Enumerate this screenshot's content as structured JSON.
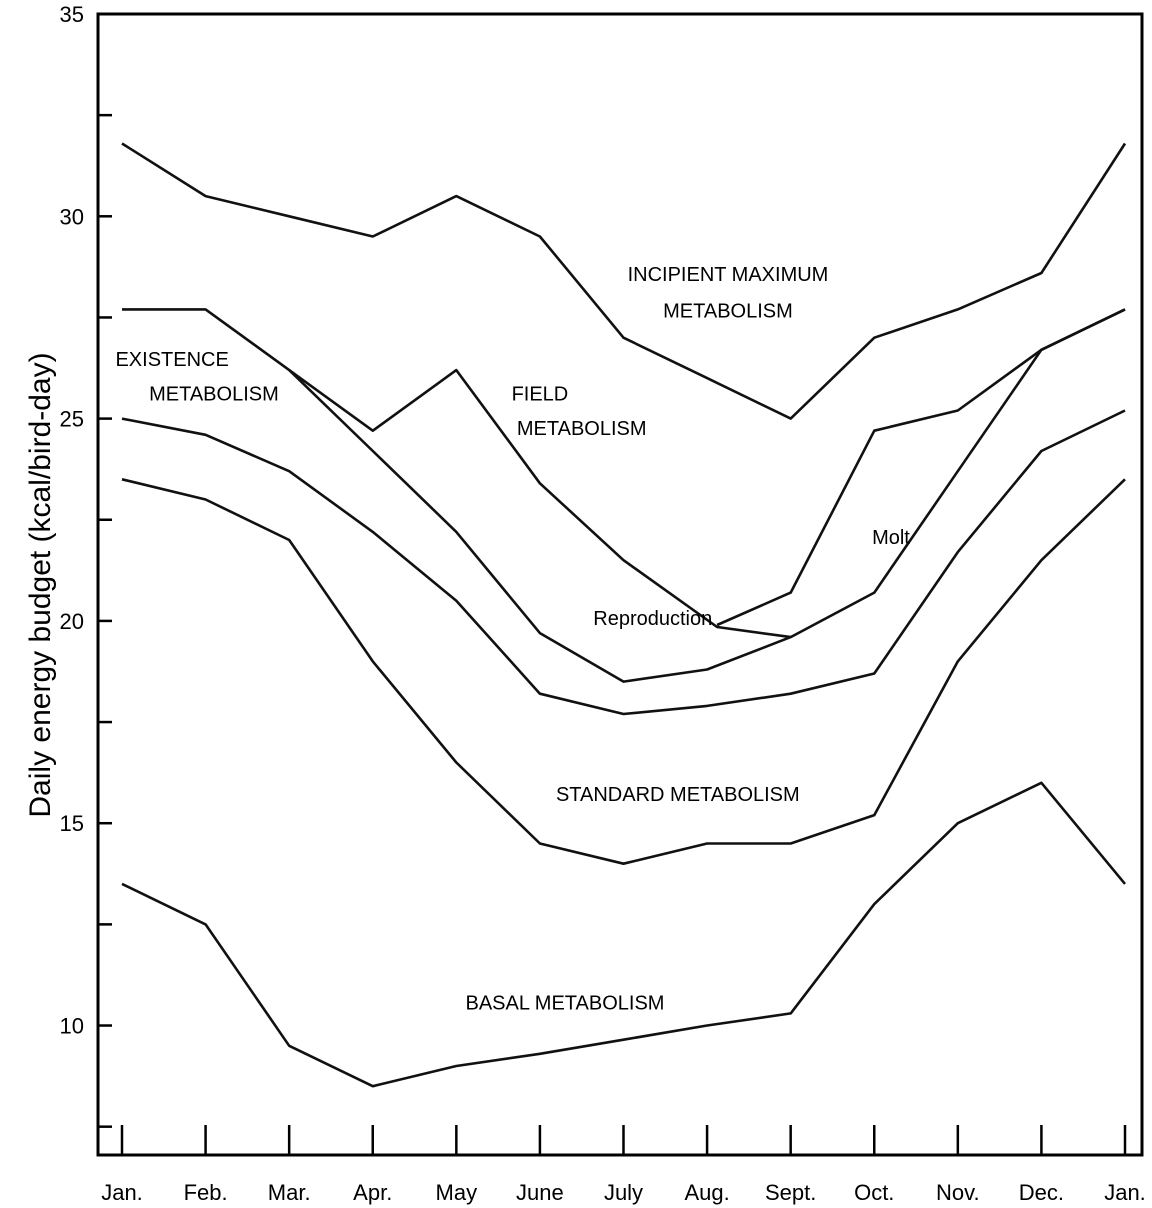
{
  "chart_data": {
    "type": "line",
    "title": "",
    "xlabel": "",
    "ylabel": "Daily energy budget (kcal/bird-day)",
    "ylim": [
      6.8,
      35
    ],
    "grid": false,
    "legend": "none",
    "categories": [
      "Jan.",
      "Feb.",
      "Mar.",
      "Apr.",
      "May",
      "June",
      "July",
      "Aug.",
      "Sept.",
      "Oct.",
      "Nov.",
      "Dec.",
      "Jan."
    ],
    "y_ticks": [
      {
        "value": 35,
        "label": "35"
      },
      {
        "value": 32.5,
        "label": ""
      },
      {
        "value": 30,
        "label": "30"
      },
      {
        "value": 27.5,
        "label": ""
      },
      {
        "value": 25,
        "label": "25"
      },
      {
        "value": 22.5,
        "label": ""
      },
      {
        "value": 20,
        "label": "20"
      },
      {
        "value": 17.5,
        "label": ""
      },
      {
        "value": 15,
        "label": "15"
      },
      {
        "value": 12.5,
        "label": ""
      },
      {
        "value": 10,
        "label": "10"
      },
      {
        "value": 7.5,
        "label": ""
      }
    ],
    "series": [
      {
        "id": "incipient-maximum",
        "points": [
          [
            0,
            31.8
          ],
          [
            1,
            30.5
          ],
          [
            2,
            30.0
          ],
          [
            3,
            29.5
          ],
          [
            4,
            30.5
          ],
          [
            5,
            29.5
          ],
          [
            6,
            27.0
          ],
          [
            7,
            26.0
          ],
          [
            8,
            25.0
          ],
          [
            9,
            27.0
          ],
          [
            10,
            27.7
          ],
          [
            11,
            28.6
          ],
          [
            12,
            31.8
          ]
        ]
      },
      {
        "id": "existence-upper",
        "points": [
          [
            0,
            27.7
          ],
          [
            1,
            27.7
          ],
          [
            2,
            26.2
          ],
          [
            3,
            24.2
          ],
          [
            4,
            22.2
          ],
          [
            5,
            19.7
          ],
          [
            6,
            18.5
          ],
          [
            7,
            18.8
          ],
          [
            8,
            19.6
          ],
          [
            9,
            20.7
          ],
          [
            10,
            23.7
          ],
          [
            11,
            26.7
          ],
          [
            12,
            27.7
          ]
        ]
      },
      {
        "id": "field",
        "points": [
          [
            2,
            26.2
          ],
          [
            3,
            24.7
          ],
          [
            4,
            26.2
          ],
          [
            5,
            23.4
          ],
          [
            6,
            21.5
          ],
          [
            7.12,
            19.85
          ],
          [
            8,
            19.6
          ]
        ]
      },
      {
        "id": "molt",
        "points": [
          [
            7.12,
            19.9
          ],
          [
            8,
            20.7
          ],
          [
            9,
            24.7
          ],
          [
            10,
            25.2
          ],
          [
            11,
            26.7
          ],
          [
            12,
            27.7
          ]
        ]
      },
      {
        "id": "existence-lower",
        "points": [
          [
            0,
            25.0
          ],
          [
            1,
            24.6
          ],
          [
            2,
            23.7
          ],
          [
            3,
            22.2
          ],
          [
            4,
            20.5
          ],
          [
            5,
            18.2
          ],
          [
            6,
            17.7
          ],
          [
            7,
            17.9
          ],
          [
            8,
            18.2
          ],
          [
            9,
            18.7
          ],
          [
            10,
            21.7
          ],
          [
            11,
            24.2
          ],
          [
            12,
            25.2
          ]
        ]
      },
      {
        "id": "standard",
        "points": [
          [
            0,
            23.5
          ],
          [
            1,
            23.0
          ],
          [
            2,
            22.0
          ],
          [
            3,
            19.0
          ],
          [
            4,
            16.5
          ],
          [
            5,
            14.5
          ],
          [
            6,
            14.0
          ],
          [
            7,
            14.5
          ],
          [
            8,
            14.5
          ],
          [
            9,
            15.2
          ],
          [
            10,
            19.0
          ],
          [
            11,
            21.5
          ],
          [
            12,
            23.5
          ]
        ]
      },
      {
        "id": "basal",
        "points": [
          [
            0,
            13.5
          ],
          [
            1,
            12.5
          ],
          [
            2,
            9.5
          ],
          [
            3,
            8.5
          ],
          [
            4,
            9.0
          ],
          [
            5,
            9.3
          ],
          [
            6,
            9.65
          ],
          [
            7,
            10.0
          ],
          [
            8,
            10.3
          ],
          [
            9,
            13.0
          ],
          [
            10,
            15.0
          ],
          [
            11,
            16.0
          ],
          [
            12,
            13.5
          ]
        ]
      }
    ],
    "annotations": [
      {
        "id": "incipient-max-1",
        "text": "INCIPIENT MAXIMUM",
        "x": 7.25,
        "y": 28.4
      },
      {
        "id": "incipient-max-2",
        "text": "METABOLISM",
        "x": 7.25,
        "y": 27.5
      },
      {
        "id": "existence-1",
        "text": "EXISTENCE",
        "x": 0.6,
        "y": 26.3
      },
      {
        "id": "existence-2",
        "text": "METABOLISM",
        "x": 1.1,
        "y": 25.45
      },
      {
        "id": "field-1",
        "text": "FIELD",
        "x": 5.0,
        "y": 25.45
      },
      {
        "id": "field-2",
        "text": "METABOLISM",
        "x": 5.5,
        "y": 24.6
      },
      {
        "id": "molt",
        "text": "Molt",
        "x": 9.2,
        "y": 21.9
      },
      {
        "id": "reproduction",
        "text": "Reproduction",
        "x": 6.35,
        "y": 19.9
      },
      {
        "id": "standard",
        "text": "STANDARD METABOLISM",
        "x": 6.65,
        "y": 15.55
      },
      {
        "id": "basal",
        "text": "BASAL METABOLISM",
        "x": 5.3,
        "y": 10.4
      }
    ]
  }
}
